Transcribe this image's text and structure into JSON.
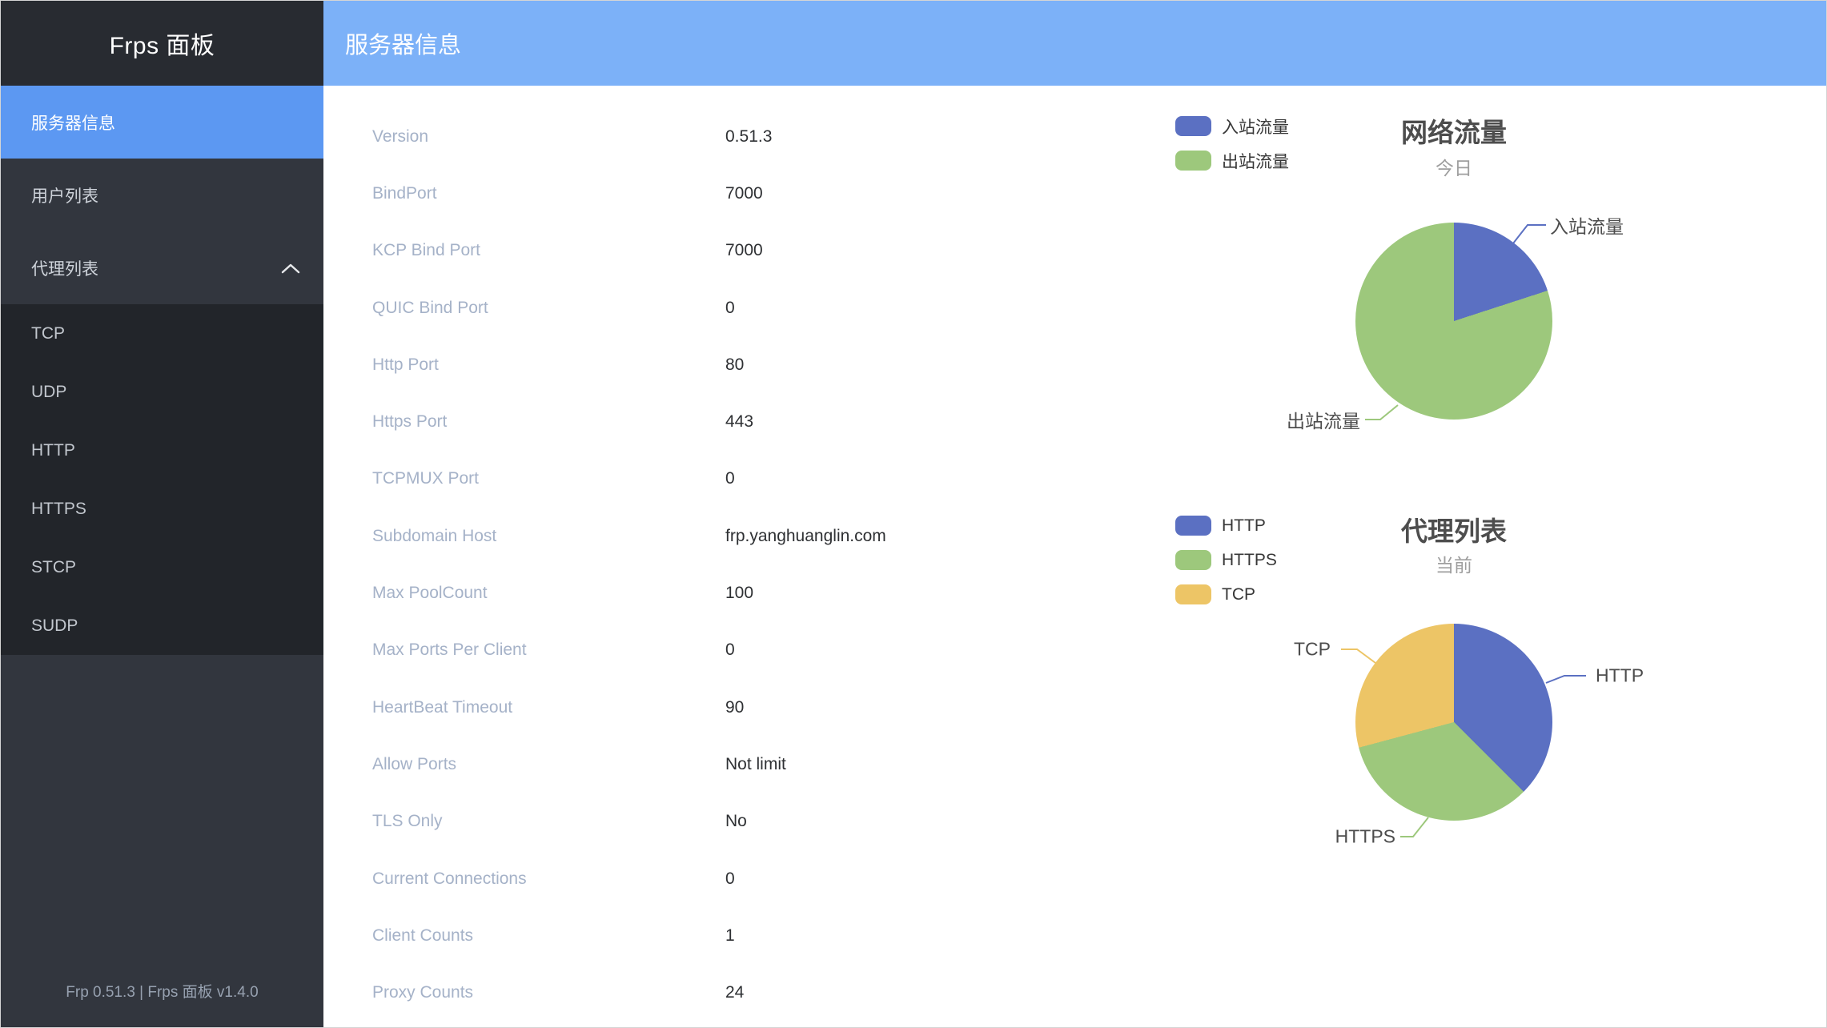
{
  "sidebar": {
    "title": "Frps 面板",
    "items": [
      {
        "label": "服务器信息",
        "active": true
      },
      {
        "label": "用户列表",
        "active": false
      },
      {
        "label": "代理列表",
        "active": false,
        "expanded": true,
        "children": [
          "TCP",
          "UDP",
          "HTTP",
          "HTTPS",
          "STCP",
          "SUDP"
        ]
      }
    ],
    "footer": "Frp 0.51.3 | Frps 面板 v1.4.0"
  },
  "header": {
    "title": "服务器信息"
  },
  "server_info": {
    "rows": [
      {
        "label": "Version",
        "value": "0.51.3"
      },
      {
        "label": "BindPort",
        "value": "7000"
      },
      {
        "label": "KCP Bind Port",
        "value": "7000"
      },
      {
        "label": "QUIC Bind Port",
        "value": "0"
      },
      {
        "label": "Http Port",
        "value": "80"
      },
      {
        "label": "Https Port",
        "value": "443"
      },
      {
        "label": "TCPMUX Port",
        "value": "0"
      },
      {
        "label": "Subdomain Host",
        "value": "frp.yanghuanglin.com"
      },
      {
        "label": "Max PoolCount",
        "value": "100"
      },
      {
        "label": "Max Ports Per Client",
        "value": "0"
      },
      {
        "label": "HeartBeat Timeout",
        "value": "90"
      },
      {
        "label": "Allow Ports",
        "value": "Not limit"
      },
      {
        "label": "TLS Only",
        "value": "No"
      },
      {
        "label": "Current Connections",
        "value": "0"
      },
      {
        "label": "Client Counts",
        "value": "1"
      },
      {
        "label": "Proxy Counts",
        "value": "24"
      }
    ]
  },
  "chart_data": [
    {
      "type": "pie",
      "title": "网络流量",
      "subtitle": "今日",
      "legend_position": "top-left",
      "start_angle_deg": 90,
      "clockwise": true,
      "value_unit": "percent (estimated from arc angles)",
      "series": [
        {
          "name": "入站流量",
          "value": 20,
          "color": "#5B70C2"
        },
        {
          "name": "出站流量",
          "value": 80,
          "color": "#9DC87C"
        }
      ]
    },
    {
      "type": "pie",
      "title": "代理列表",
      "subtitle": "当前",
      "legend_position": "top-left",
      "start_angle_deg": 90,
      "clockwise": true,
      "value_unit": "proxy count",
      "series": [
        {
          "name": "HTTP",
          "value": 9,
          "color": "#5B70C2"
        },
        {
          "name": "HTTPS",
          "value": 8,
          "color": "#9DC87C"
        },
        {
          "name": "TCP",
          "value": 7,
          "color": "#EDC566"
        }
      ]
    }
  ],
  "theme": {
    "header_bg": "#7CB1F8",
    "sidebar_bg": "#32363E",
    "sidebar_header_bg": "#282B31",
    "submenu_bg": "#22252A",
    "active_item_bg": "#5C98F2",
    "label_color": "#A5B2C8",
    "value_color": "#2E3033"
  }
}
